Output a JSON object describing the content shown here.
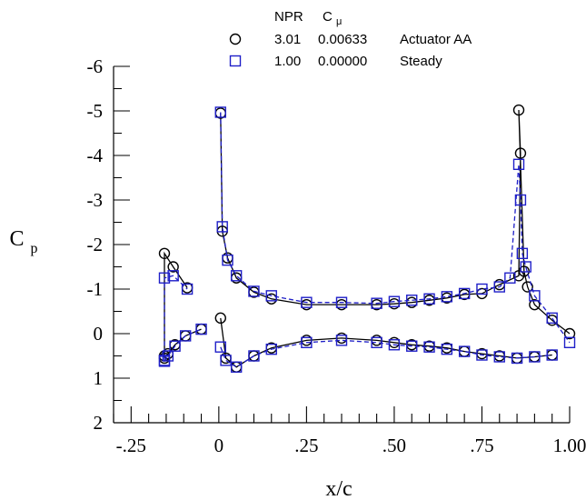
{
  "chart_data": {
    "type": "line",
    "xlabel": "x/c",
    "ylabel": "C",
    "ylabel_sub": "p",
    "xlim": [
      -0.3,
      1.0
    ],
    "ylim": [
      -6,
      2
    ],
    "y_inverted": true,
    "grid": false,
    "xticks": [
      -0.25,
      0,
      0.25,
      0.5,
      0.75,
      1.0
    ],
    "xtick_labels": [
      "-.25",
      "0",
      ".25",
      ".50",
      ".75",
      "1.00"
    ],
    "yticks": [
      -6,
      -5,
      -4,
      -3,
      -2,
      -1,
      0,
      1,
      2
    ],
    "ytick_labels": [
      "-6",
      "-5",
      "-4",
      "-3",
      "-2",
      "-1",
      "0",
      "1",
      "2"
    ],
    "legend": {
      "placement": "top",
      "header": {
        "npr": "NPR",
        "cmu": "C",
        "cmu_sub": "μ"
      },
      "entries": [
        {
          "npr": "3.01",
          "cmu": "0.00633",
          "label": "Actuator AA"
        },
        {
          "npr": "1.00",
          "cmu": "0.00000",
          "label": "Steady"
        }
      ]
    },
    "series": [
      {
        "name": "Actuator AA",
        "marker": "circle",
        "color": "#000000",
        "line": "solid",
        "segments": [
          [
            [
              -0.155,
              0.5
            ],
            [
              -0.155,
              -1.8
            ],
            [
              -0.13,
              -1.5
            ],
            [
              -0.09,
              -1.03
            ]
          ],
          [
            [
              -0.155,
              0.55
            ],
            [
              -0.145,
              0.45
            ],
            [
              -0.125,
              0.25
            ],
            [
              -0.095,
              0.05
            ],
            [
              -0.05,
              -0.1
            ]
          ],
          [
            [
              0.005,
              -4.95
            ],
            [
              0.01,
              -2.3
            ],
            [
              0.025,
              -1.7
            ],
            [
              0.05,
              -1.25
            ],
            [
              0.1,
              -0.93
            ],
            [
              0.15,
              -0.78
            ],
            [
              0.25,
              -0.65
            ],
            [
              0.35,
              -0.65
            ],
            [
              0.45,
              -0.65
            ],
            [
              0.5,
              -0.67
            ],
            [
              0.55,
              -0.7
            ],
            [
              0.6,
              -0.75
            ],
            [
              0.65,
              -0.8
            ],
            [
              0.7,
              -0.88
            ],
            [
              0.75,
              -0.9
            ],
            [
              0.8,
              -1.1
            ],
            [
              0.855,
              -1.3
            ],
            [
              0.86,
              -4.05
            ],
            [
              0.855,
              -5.02
            ],
            [
              0.87,
              -1.4
            ],
            [
              0.88,
              -1.05
            ],
            [
              0.9,
              -0.65
            ],
            [
              0.95,
              -0.3
            ],
            [
              1.0,
              0.0
            ]
          ],
          [
            [
              0.005,
              -0.35
            ],
            [
              0.02,
              0.55
            ],
            [
              0.05,
              0.75
            ],
            [
              0.1,
              0.5
            ],
            [
              0.15,
              0.32
            ],
            [
              0.25,
              0.15
            ],
            [
              0.35,
              0.1
            ],
            [
              0.45,
              0.15
            ],
            [
              0.5,
              0.2
            ],
            [
              0.55,
              0.25
            ],
            [
              0.6,
              0.28
            ],
            [
              0.65,
              0.32
            ],
            [
              0.7,
              0.4
            ],
            [
              0.75,
              0.45
            ],
            [
              0.8,
              0.5
            ],
            [
              0.85,
              0.55
            ],
            [
              0.9,
              0.52
            ],
            [
              0.95,
              0.48
            ]
          ]
        ]
      },
      {
        "name": "Steady",
        "marker": "square",
        "color": "#1f1fc8",
        "line": "dashed",
        "segments": [
          [
            [
              -0.155,
              0.6
            ],
            [
              -0.155,
              -1.25
            ],
            [
              -0.13,
              -1.3
            ],
            [
              -0.09,
              -1.0
            ]
          ],
          [
            [
              -0.155,
              0.62
            ],
            [
              -0.145,
              0.5
            ],
            [
              -0.125,
              0.28
            ],
            [
              -0.095,
              0.05
            ],
            [
              -0.05,
              -0.1
            ]
          ],
          [
            [
              0.005,
              -4.97
            ],
            [
              0.01,
              -2.4
            ],
            [
              0.025,
              -1.65
            ],
            [
              0.05,
              -1.3
            ],
            [
              0.1,
              -0.95
            ],
            [
              0.15,
              -0.85
            ],
            [
              0.25,
              -0.7
            ],
            [
              0.35,
              -0.7
            ],
            [
              0.45,
              -0.68
            ],
            [
              0.5,
              -0.72
            ],
            [
              0.55,
              -0.75
            ],
            [
              0.6,
              -0.78
            ],
            [
              0.65,
              -0.83
            ],
            [
              0.7,
              -0.9
            ],
            [
              0.75,
              -1.0
            ],
            [
              0.8,
              -1.05
            ],
            [
              0.83,
              -1.25
            ],
            [
              0.855,
              -3.8
            ],
            [
              0.86,
              -3.0
            ],
            [
              0.865,
              -1.8
            ],
            [
              0.875,
              -1.5
            ],
            [
              0.9,
              -0.85
            ],
            [
              0.95,
              -0.35
            ],
            [
              1.0,
              0.2
            ]
          ],
          [
            [
              0.005,
              0.3
            ],
            [
              0.02,
              0.6
            ],
            [
              0.05,
              0.75
            ],
            [
              0.1,
              0.5
            ],
            [
              0.15,
              0.35
            ],
            [
              0.25,
              0.2
            ],
            [
              0.35,
              0.15
            ],
            [
              0.45,
              0.2
            ],
            [
              0.5,
              0.25
            ],
            [
              0.55,
              0.28
            ],
            [
              0.6,
              0.3
            ],
            [
              0.65,
              0.35
            ],
            [
              0.7,
              0.4
            ],
            [
              0.75,
              0.48
            ],
            [
              0.8,
              0.52
            ],
            [
              0.85,
              0.55
            ],
            [
              0.9,
              0.52
            ],
            [
              0.95,
              0.48
            ]
          ]
        ]
      }
    ]
  }
}
